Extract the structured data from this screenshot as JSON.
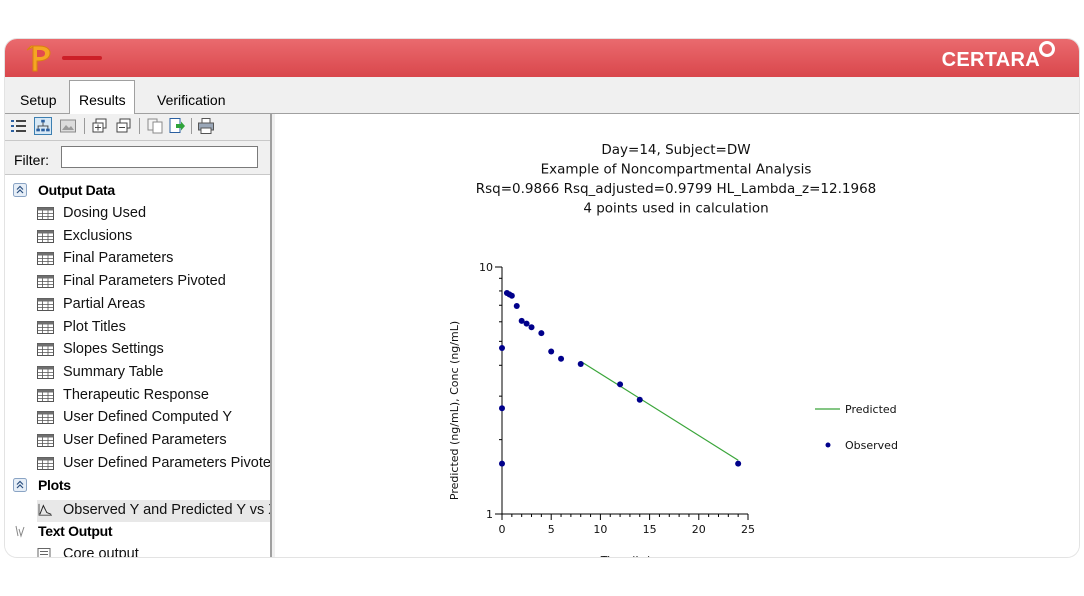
{
  "app": {
    "brand": "CERTARA"
  },
  "tabs": [
    {
      "label": "Setup",
      "active": false
    },
    {
      "label": "Results",
      "active": true
    },
    {
      "label": "Verification",
      "active": false
    }
  ],
  "filter": {
    "label": "Filter:",
    "value": ""
  },
  "tree": {
    "output_data": {
      "label": "Output Data",
      "items": [
        "Dosing Used",
        "Exclusions",
        "Final Parameters",
        "Final Parameters Pivoted",
        "Partial Areas",
        "Plot Titles",
        "Slopes Settings",
        "Summary Table",
        "Therapeutic Response",
        "User Defined Computed Y",
        "User Defined Parameters",
        "User Defined Parameters Pivoted"
      ]
    },
    "plots": {
      "label": "Plots",
      "items": [
        "Observed Y and Predicted Y vs X"
      ]
    },
    "text_output": {
      "label": "Text Output",
      "items": [
        "Core output"
      ]
    }
  },
  "chart_data": {
    "type": "scatter",
    "title_lines": [
      "Day=14, Subject=DW",
      "Example of Noncompartmental Analysis",
      "Rsq=0.9866  Rsq_adjusted=0.9799  HL_Lambda_z=12.1968",
      "4 points used in calculation"
    ],
    "xlabel": "Time (hr)",
    "ylabel": "Predicted (ng/mL), Conc (ng/mL)",
    "xlim": [
      0,
      25
    ],
    "ylim": [
      1,
      10
    ],
    "ylog": true,
    "x_ticks": [
      0,
      5,
      10,
      15,
      20,
      25
    ],
    "y_tick_labels": [
      "10",
      "1"
    ],
    "legend_position": "right",
    "legend": [
      {
        "name": "Predicted",
        "kind": "line",
        "color": "#3aa53a"
      },
      {
        "name": "Observed",
        "kind": "point",
        "color": "#00008b"
      }
    ],
    "series": [
      {
        "name": "Observed",
        "color": "#00008b",
        "x": [
          0,
          0,
          0,
          0.5,
          0.75,
          1,
          1.5,
          2,
          2.5,
          3,
          4,
          5,
          6,
          8,
          12,
          14,
          24
        ],
        "y": [
          1.6,
          2.68,
          4.7,
          7.85,
          7.75,
          7.65,
          6.95,
          6.05,
          5.9,
          5.7,
          5.4,
          4.55,
          4.25,
          4.05,
          3.35,
          2.9,
          1.6
        ]
      },
      {
        "name": "Predicted",
        "color": "#3aa53a",
        "x": [
          8,
          24
        ],
        "y": [
          4.15,
          1.65
        ]
      }
    ]
  }
}
